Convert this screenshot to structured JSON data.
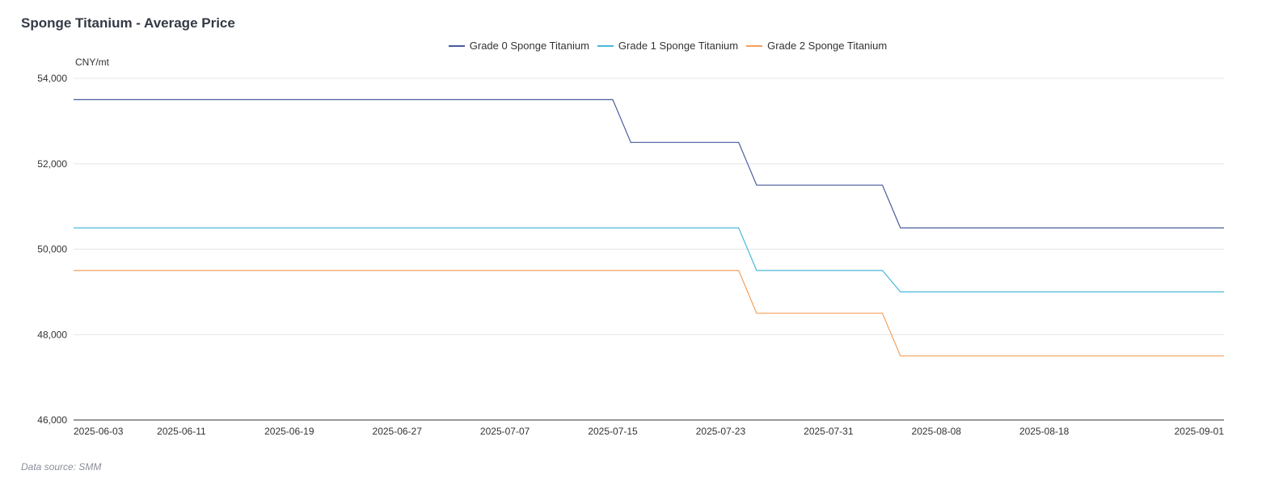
{
  "title": "Sponge Titanium - Average Price",
  "unit_label": "CNY/mt",
  "source_text": "Data source:  SMM",
  "chart_data": {
    "type": "line",
    "title": "Sponge Titanium - Average Price",
    "ylabel": "CNY/mt",
    "xlabel": "",
    "ylim": [
      46000,
      54000
    ],
    "y_ticks": [
      "54,000",
      "52,000",
      "50,000",
      "48,000",
      "46,000"
    ],
    "y_tick_values": [
      54000,
      52000,
      50000,
      48000,
      46000
    ],
    "x_tick_labels": [
      "2025-06-03",
      "2025-06-11",
      "2025-06-19",
      "2025-06-27",
      "2025-07-07",
      "2025-07-15",
      "2025-07-23",
      "2025-07-31",
      "2025-08-08",
      "2025-08-18",
      "2025-09-01"
    ],
    "legend_position": "top-center",
    "grid": true,
    "x": [
      "2025-06-03",
      "2025-06-04",
      "2025-06-05",
      "2025-06-06",
      "2025-06-09",
      "2025-06-10",
      "2025-06-11",
      "2025-06-12",
      "2025-06-13",
      "2025-06-16",
      "2025-06-17",
      "2025-06-18",
      "2025-06-19",
      "2025-06-20",
      "2025-06-23",
      "2025-06-24",
      "2025-06-25",
      "2025-06-26",
      "2025-06-27",
      "2025-06-30",
      "2025-07-01",
      "2025-07-02",
      "2025-07-03",
      "2025-07-04",
      "2025-07-07",
      "2025-07-08",
      "2025-07-09",
      "2025-07-10",
      "2025-07-11",
      "2025-07-14",
      "2025-07-15",
      "2025-07-16",
      "2025-07-17",
      "2025-07-18",
      "2025-07-21",
      "2025-07-22",
      "2025-07-23",
      "2025-07-24",
      "2025-07-25",
      "2025-07-28",
      "2025-07-29",
      "2025-07-30",
      "2025-07-31",
      "2025-08-01",
      "2025-08-04",
      "2025-08-05",
      "2025-08-06",
      "2025-08-07",
      "2025-08-08",
      "2025-08-11",
      "2025-08-12",
      "2025-08-13",
      "2025-08-14",
      "2025-08-15",
      "2025-08-18",
      "2025-08-19",
      "2025-08-20",
      "2025-08-21",
      "2025-08-22",
      "2025-08-25",
      "2025-08-26",
      "2025-08-27",
      "2025-08-28",
      "2025-08-29",
      "2025-09-01"
    ],
    "series": [
      {
        "name": "Grade 0 Sponge Titanium",
        "color": "#4a5a9c",
        "values": [
          53500,
          53500,
          53500,
          53500,
          53500,
          53500,
          53500,
          53500,
          53500,
          53500,
          53500,
          53500,
          53500,
          53500,
          53500,
          53500,
          53500,
          53500,
          53500,
          53500,
          53500,
          53500,
          53500,
          53500,
          53500,
          53500,
          53500,
          53500,
          53500,
          53500,
          53500,
          52500,
          52500,
          52500,
          52500,
          52500,
          52500,
          52500,
          51500,
          51500,
          51500,
          51500,
          51500,
          51500,
          51500,
          51500,
          50500,
          50500,
          50500,
          50500,
          50500,
          50500,
          50500,
          50500,
          50500,
          50500,
          50500,
          50500,
          50500,
          50500,
          50500,
          50500,
          50500,
          50500,
          50500
        ]
      },
      {
        "name": "Grade 1 Sponge Titanium",
        "color": "#4cb8d9",
        "values": [
          50500,
          50500,
          50500,
          50500,
          50500,
          50500,
          50500,
          50500,
          50500,
          50500,
          50500,
          50500,
          50500,
          50500,
          50500,
          50500,
          50500,
          50500,
          50500,
          50500,
          50500,
          50500,
          50500,
          50500,
          50500,
          50500,
          50500,
          50500,
          50500,
          50500,
          50500,
          50500,
          50500,
          50500,
          50500,
          50500,
          50500,
          50500,
          49500,
          49500,
          49500,
          49500,
          49500,
          49500,
          49500,
          49500,
          49000,
          49000,
          49000,
          49000,
          49000,
          49000,
          49000,
          49000,
          49000,
          49000,
          49000,
          49000,
          49000,
          49000,
          49000,
          49000,
          49000,
          49000,
          49000
        ]
      },
      {
        "name": "Grade 2 Sponge Titanium",
        "color": "#f5a05a",
        "values": [
          49500,
          49500,
          49500,
          49500,
          49500,
          49500,
          49500,
          49500,
          49500,
          49500,
          49500,
          49500,
          49500,
          49500,
          49500,
          49500,
          49500,
          49500,
          49500,
          49500,
          49500,
          49500,
          49500,
          49500,
          49500,
          49500,
          49500,
          49500,
          49500,
          49500,
          49500,
          49500,
          49500,
          49500,
          49500,
          49500,
          49500,
          49500,
          48500,
          48500,
          48500,
          48500,
          48500,
          48500,
          48500,
          48500,
          47500,
          47500,
          47500,
          47500,
          47500,
          47500,
          47500,
          47500,
          47500,
          47500,
          47500,
          47500,
          47500,
          47500,
          47500,
          47500,
          47500,
          47500,
          47500
        ]
      }
    ]
  }
}
